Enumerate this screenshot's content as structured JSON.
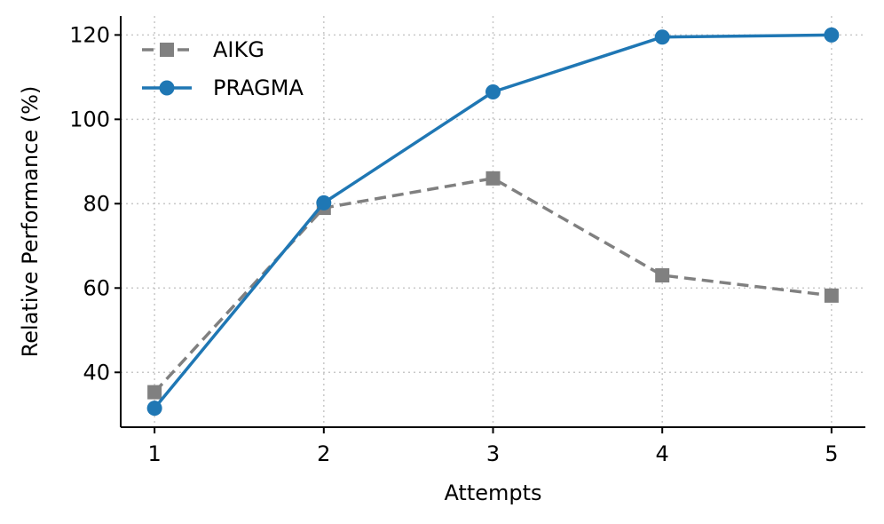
{
  "chart_data": {
    "type": "line",
    "xlabel": "Attempts",
    "ylabel": "Relative Performance (%)",
    "x": [
      1,
      2,
      3,
      4,
      5
    ],
    "xlim": [
      0.8,
      5.2
    ],
    "ylim": [
      27,
      124.5
    ],
    "xticks": [
      1,
      2,
      3,
      4,
      5
    ],
    "yticks": [
      40,
      60,
      80,
      100,
      120
    ],
    "grid": true,
    "legend_position": "top-left",
    "series": [
      {
        "name": "AIKG",
        "values": [
          35.3,
          79,
          86,
          63,
          58.2
        ],
        "color": "#808080",
        "line_style": "dashed",
        "marker": "square"
      },
      {
        "name": "PRAGMA",
        "values": [
          31.5,
          80.2,
          106.5,
          119.5,
          120
        ],
        "color": "#1f77b4",
        "line_style": "solid",
        "marker": "circle"
      }
    ]
  }
}
